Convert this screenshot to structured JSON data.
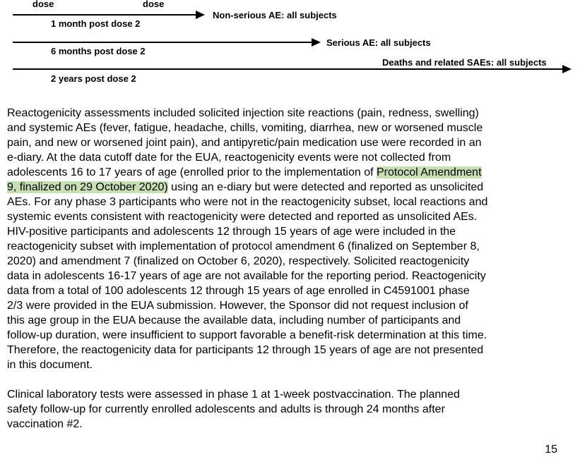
{
  "timeline": {
    "top_labels": [
      "dose",
      "dose"
    ],
    "rows": [
      {
        "period": "1 month post dose 2",
        "outcome": "Non-serious AE: all subjects"
      },
      {
        "period": "6 months post dose 2",
        "outcome": "Serious AE: all subjects"
      },
      {
        "period": "2 years post dose 2",
        "outcome": "Deaths and related SAEs: all subjects"
      }
    ]
  },
  "paragraphs": {
    "p1": {
      "part_1": "Reactogenicity assessments included solicited injection site reactions (pain, redness, swelling)\nand systemic AEs (fever, fatigue, headache, chills, vomiting, diarrhea, new or worsened muscle\npain, and new or worsened joint pain), and antipyretic/pain medication use were recorded in an\ne-diary. At the data cutoff date for the EUA, reactogenicity events were not collected from\nadolescents 16 to 17 years of age (enrolled prior to the implementation of ",
      "highlight_1": "Protocol Amendment",
      "break_1": "\n",
      "highlight_2": "9, finalized on 29 October 2020)",
      "part_2": " using an e-diary but were detected and reported as unsolicited\nAEs. For any phase 3 participants who were not in the reactogenicity subset, local reactions and\nsystemic events consistent with reactogenicity were detected and reported as unsolicited AEs.\nHIV-positive participants and adolescents 12 through 15 years of age were included in the\nreactogenicity subset with implementation of protocol amendment 6 (finalized on September 8,\n2020) and amendment 7 (finalized on October 6, 2020), respectively. Solicited reactogenicity\ndata in adolescents 16-17 years of age are not available for the reporting period. Reactogenicity\ndata from a total of 100 adolescents 12 through 15 years of age enrolled in C4591001 phase\n2/3 were provided in the EUA submission. However, the Sponsor did not request inclusion of\nthis age group in the EUA because the available data, including number of participants and\nfollow-up duration, were insufficient to support favorable a benefit-risk determination at this time.\nTherefore, the reactogenicity data for participants 12 through 15 years of age are not presented\nin this document."
    },
    "p2": "Clinical laboratory tests were assessed in phase 1 at 1-week postvaccination. The planned\nsafety follow-up for currently enrolled adolescents and adults is through 24 months after\nvaccination #2."
  },
  "highlight_color": "#c6e0b4",
  "page_number": "15"
}
